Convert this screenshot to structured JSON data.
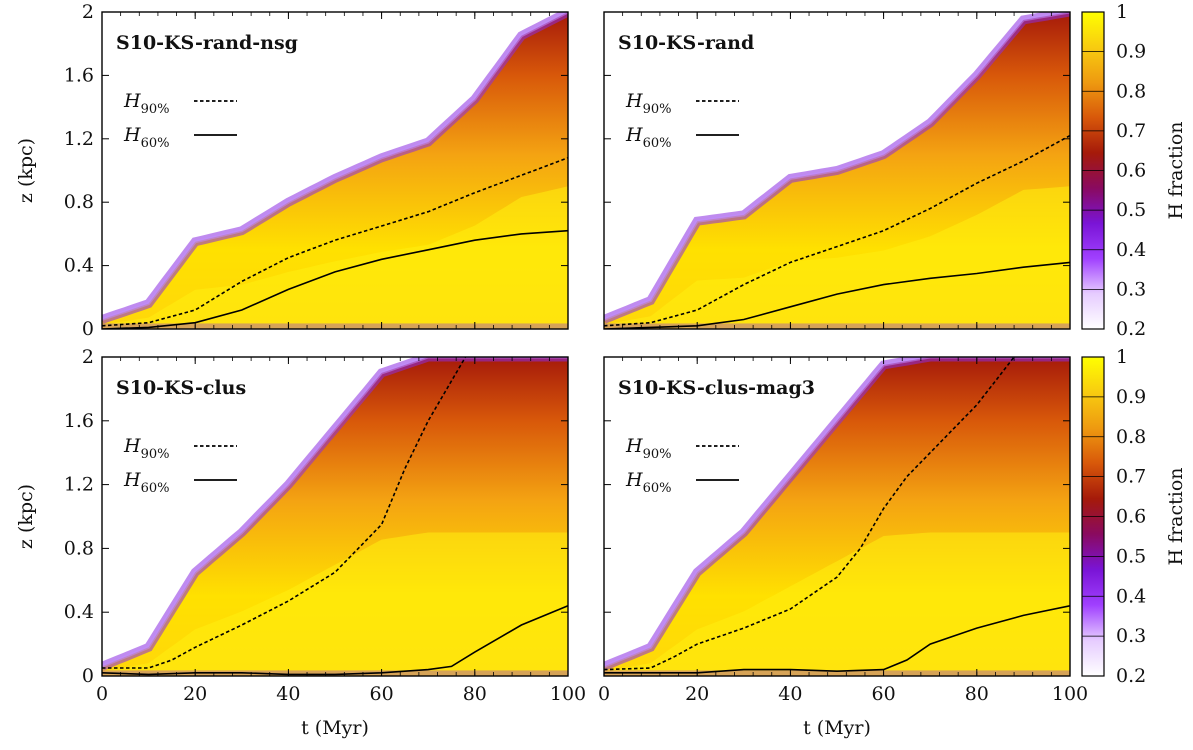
{
  "chart_data": [
    {
      "type": "heatmap",
      "title": "S10-KS-rand-nsg",
      "xlabel": "",
      "ylabel": "z (kpc)",
      "xlim": [
        0,
        100
      ],
      "ylim": [
        0,
        2
      ],
      "x_ticks": [
        "0",
        "20",
        "40",
        "60",
        "80",
        "100"
      ],
      "y_ticks": [
        "0",
        "0.4",
        "0.8",
        "1.2",
        "1.6",
        "2"
      ],
      "legend": [
        "H90%",
        "H60%"
      ],
      "front": [
        [
          0,
          0.06
        ],
        [
          10,
          0.16
        ],
        [
          20,
          0.55
        ],
        [
          30,
          0.62
        ],
        [
          40,
          0.8
        ],
        [
          50,
          0.95
        ],
        [
          60,
          1.08
        ],
        [
          70,
          1.18
        ],
        [
          80,
          1.45
        ],
        [
          90,
          1.85
        ],
        [
          100,
          2.0
        ]
      ],
      "series": [
        {
          "name": "H90%",
          "style": "dashed",
          "x": [
            0,
            10,
            20,
            30,
            40,
            50,
            60,
            70,
            80,
            90,
            100
          ],
          "y": [
            0.02,
            0.04,
            0.12,
            0.3,
            0.45,
            0.56,
            0.65,
            0.74,
            0.86,
            0.97,
            1.08
          ]
        },
        {
          "name": "H60%",
          "style": "solid",
          "x": [
            0,
            10,
            20,
            30,
            40,
            50,
            60,
            70,
            80,
            90,
            100
          ],
          "y": [
            0.0,
            0.01,
            0.04,
            0.12,
            0.25,
            0.36,
            0.44,
            0.5,
            0.56,
            0.6,
            0.62
          ]
        }
      ]
    },
    {
      "type": "heatmap",
      "title": "S10-KS-rand",
      "xlabel": "",
      "ylabel": "",
      "xlim": [
        0,
        100
      ],
      "ylim": [
        0,
        2
      ],
      "x_ticks": [
        "0",
        "20",
        "40",
        "60",
        "80",
        "100"
      ],
      "y_ticks": [
        "0",
        "0.4",
        "0.8",
        "1.2",
        "1.6",
        "2"
      ],
      "legend": [
        "H90%",
        "H60%"
      ],
      "front": [
        [
          0,
          0.06
        ],
        [
          10,
          0.18
        ],
        [
          20,
          0.68
        ],
        [
          30,
          0.72
        ],
        [
          40,
          0.95
        ],
        [
          50,
          1.0
        ],
        [
          60,
          1.1
        ],
        [
          70,
          1.3
        ],
        [
          80,
          1.6
        ],
        [
          90,
          1.95
        ],
        [
          100,
          2.0
        ]
      ],
      "series": [
        {
          "name": "H90%",
          "style": "dashed",
          "x": [
            0,
            10,
            20,
            30,
            40,
            50,
            60,
            70,
            80,
            90,
            100
          ],
          "y": [
            0.02,
            0.04,
            0.12,
            0.28,
            0.42,
            0.52,
            0.62,
            0.76,
            0.92,
            1.06,
            1.22
          ]
        },
        {
          "name": "H60%",
          "style": "solid",
          "x": [
            0,
            10,
            20,
            30,
            40,
            50,
            60,
            70,
            80,
            90,
            100
          ],
          "y": [
            0.0,
            0.01,
            0.02,
            0.06,
            0.14,
            0.22,
            0.28,
            0.32,
            0.35,
            0.39,
            0.42
          ]
        }
      ]
    },
    {
      "type": "heatmap",
      "title": "S10-KS-clus",
      "xlabel": "t (Myr)",
      "ylabel": "z (kpc)",
      "xlim": [
        0,
        100
      ],
      "ylim": [
        0,
        2
      ],
      "x_ticks": [
        "0",
        "20",
        "40",
        "60",
        "80",
        "100"
      ],
      "y_ticks": [
        "0",
        "0.4",
        "0.8",
        "1.2",
        "1.6",
        "2"
      ],
      "legend": [
        "H90%",
        "H60%"
      ],
      "front": [
        [
          0,
          0.06
        ],
        [
          10,
          0.18
        ],
        [
          20,
          0.65
        ],
        [
          30,
          0.9
        ],
        [
          40,
          1.2
        ],
        [
          50,
          1.55
        ],
        [
          60,
          1.9
        ],
        [
          70,
          2.0
        ],
        [
          80,
          2.0
        ],
        [
          90,
          2.0
        ],
        [
          100,
          2.0
        ]
      ],
      "series": [
        {
          "name": "H90%",
          "style": "dashed",
          "x": [
            0,
            10,
            15,
            20,
            30,
            40,
            50,
            60,
            65,
            70,
            75,
            78
          ],
          "y": [
            0.05,
            0.05,
            0.1,
            0.18,
            0.32,
            0.47,
            0.65,
            0.95,
            1.3,
            1.6,
            1.85,
            2.0
          ]
        },
        {
          "name": "H60%",
          "style": "solid",
          "x": [
            0,
            10,
            20,
            30,
            40,
            50,
            60,
            70,
            75,
            80,
            90,
            100
          ],
          "y": [
            0.02,
            0.01,
            0.02,
            0.02,
            0.01,
            0.01,
            0.02,
            0.04,
            0.06,
            0.15,
            0.32,
            0.44
          ]
        }
      ]
    },
    {
      "type": "heatmap",
      "title": "S10-KS-clus-mag3",
      "xlabel": "t (Myr)",
      "ylabel": "",
      "xlim": [
        0,
        100
      ],
      "ylim": [
        0,
        2
      ],
      "x_ticks": [
        "0",
        "20",
        "40",
        "60",
        "80",
        "100"
      ],
      "y_ticks": [
        "0",
        "0.4",
        "0.8",
        "1.2",
        "1.6",
        "2"
      ],
      "legend": [
        "H90%",
        "H60%"
      ],
      "front": [
        [
          0,
          0.06
        ],
        [
          10,
          0.18
        ],
        [
          20,
          0.65
        ],
        [
          30,
          0.9
        ],
        [
          40,
          1.25
        ],
        [
          50,
          1.6
        ],
        [
          60,
          1.95
        ],
        [
          70,
          2.0
        ],
        [
          80,
          2.0
        ],
        [
          90,
          2.0
        ],
        [
          100,
          2.0
        ]
      ],
      "series": [
        {
          "name": "H90%",
          "style": "dashed",
          "x": [
            0,
            10,
            15,
            20,
            30,
            40,
            50,
            55,
            60,
            65,
            70,
            80,
            88
          ],
          "y": [
            0.04,
            0.05,
            0.12,
            0.2,
            0.3,
            0.42,
            0.62,
            0.8,
            1.05,
            1.25,
            1.4,
            1.7,
            2.0
          ]
        },
        {
          "name": "H60%",
          "style": "solid",
          "x": [
            0,
            10,
            20,
            30,
            40,
            50,
            60,
            65,
            70,
            80,
            90,
            100
          ],
          "y": [
            0.02,
            0.02,
            0.02,
            0.04,
            0.04,
            0.03,
            0.04,
            0.1,
            0.2,
            0.3,
            0.38,
            0.44
          ]
        }
      ]
    }
  ],
  "colorbar": {
    "label": "H fraction",
    "ticks": [
      "0.2",
      "0.3",
      "0.4",
      "0.5",
      "0.6",
      "0.7",
      "0.8",
      "0.9",
      "1"
    ],
    "range": [
      0.2,
      1.0
    ],
    "stops": [
      "#ffffff",
      "#e6ccff",
      "#a040ff",
      "#7a14d6",
      "#8a0a60",
      "#a51a0a",
      "#d8580a",
      "#ee9a10",
      "#f8cc10",
      "#ffff00"
    ]
  }
}
